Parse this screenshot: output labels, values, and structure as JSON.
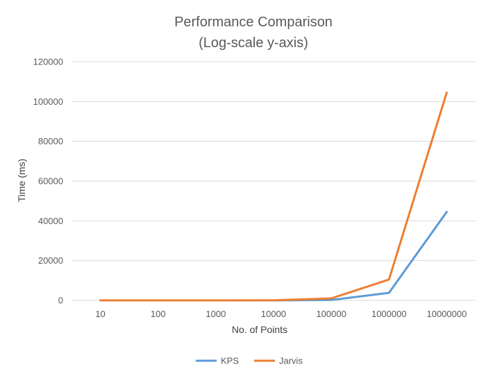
{
  "chart_data": {
    "type": "line",
    "title": "Performance Comparison",
    "subtitle": "(Log-scale y-axis)",
    "xlabel": "No. of Points",
    "ylabel": "Time (ms)",
    "categories": [
      "10",
      "100",
      "1000",
      "10000",
      "100000",
      "1000000",
      "10000000"
    ],
    "y_ticks": [
      "0",
      "20000",
      "40000",
      "60000",
      "80000",
      "100000",
      "120000"
    ],
    "ylim": [
      0,
      120000
    ],
    "grid": true,
    "legend_position": "bottom",
    "series": [
      {
        "name": "KPS",
        "color": "#5b9bd5",
        "values": [
          0,
          0,
          0,
          0,
          200,
          3800,
          44500
        ]
      },
      {
        "name": "Jarvis",
        "color": "#ed7d31",
        "values": [
          0,
          0,
          0,
          50,
          1000,
          10500,
          104500
        ]
      }
    ]
  }
}
